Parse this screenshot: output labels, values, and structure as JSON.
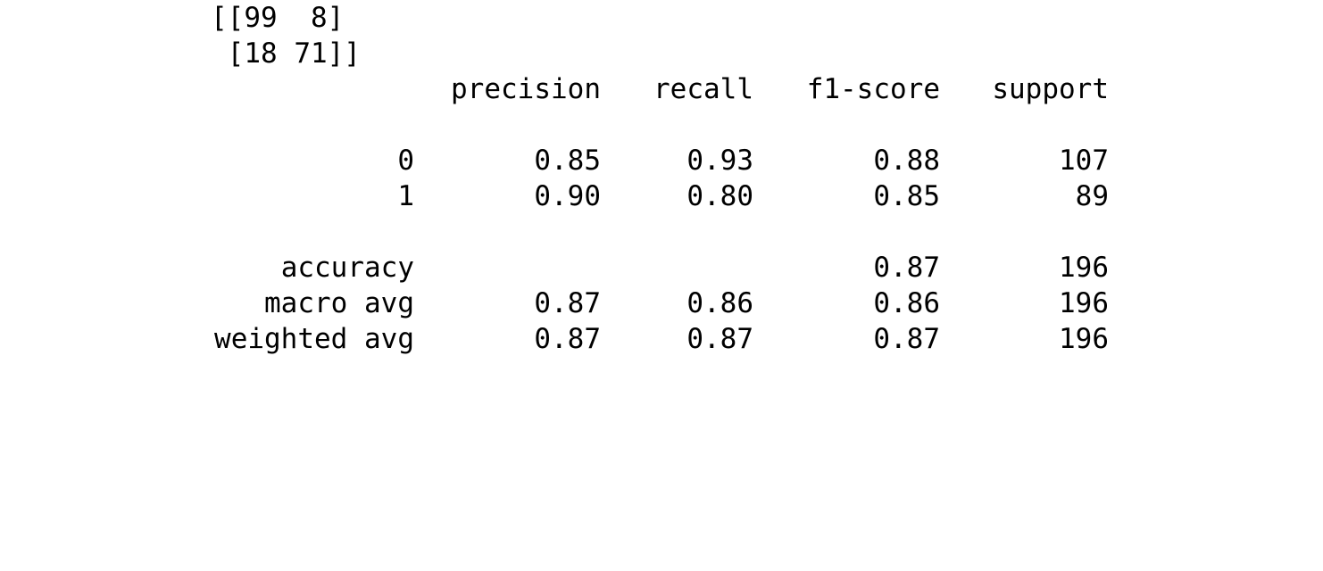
{
  "confusion_matrix": {
    "row1": "[[99  8]",
    "row2": " [18 71]]"
  },
  "report": {
    "headers": [
      "precision",
      "recall",
      "f1-score",
      "support"
    ],
    "rows": [
      {
        "label": "0",
        "precision": "0.85",
        "recall": "0.93",
        "f1": "0.88",
        "support": "107"
      },
      {
        "label": "1",
        "precision": "0.90",
        "recall": "0.80",
        "f1": "0.85",
        "support": "89"
      }
    ],
    "summary": [
      {
        "label": "accuracy",
        "precision": "",
        "recall": "",
        "f1": "0.87",
        "support": "196"
      },
      {
        "label": "macro avg",
        "precision": "0.87",
        "recall": "0.86",
        "f1": "0.86",
        "support": "196"
      },
      {
        "label": "weighted avg",
        "precision": "0.87",
        "recall": "0.87",
        "f1": "0.87",
        "support": "196"
      }
    ]
  }
}
